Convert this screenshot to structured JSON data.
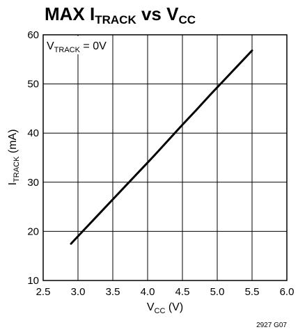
{
  "chart_data": {
    "type": "line",
    "title": {
      "main": "MAX I",
      "sub": "TRACK",
      "mid": " vs V",
      "sub2": "CC"
    },
    "xlabel": {
      "main": "V",
      "sub": "CC",
      "unit": " (V)"
    },
    "ylabel": {
      "main": "I",
      "sub": "TRACK",
      "unit": " (mA)"
    },
    "annotation": {
      "main": "V",
      "sub": "TRACK",
      "rest": " = 0V"
    },
    "figure_id": "2927 G07",
    "xlim": [
      2.5,
      6.0
    ],
    "ylim": [
      10,
      60
    ],
    "x_ticks": [
      2.5,
      3.0,
      3.5,
      4.0,
      4.5,
      5.0,
      5.5,
      6.0
    ],
    "x_tick_labels": [
      "2.5",
      "3.0",
      "3.5",
      "4.0",
      "4.5",
      "5.0",
      "5.5",
      "6.0"
    ],
    "y_ticks": [
      10,
      20,
      30,
      40,
      50,
      60
    ],
    "y_tick_labels": [
      "10",
      "20",
      "30",
      "40",
      "50",
      "60"
    ],
    "grid": true,
    "series": [
      {
        "x": [
          2.9,
          3.1,
          3.3,
          3.5,
          3.7,
          3.9,
          4.1,
          4.3,
          4.5,
          4.7,
          4.9,
          5.1,
          5.3,
          5.5
        ],
        "y": [
          17.5,
          20.5,
          23.5,
          26.5,
          29.5,
          32.5,
          35.5,
          38.6,
          41.7,
          44.7,
          47.8,
          50.8,
          53.8,
          56.8
        ]
      }
    ]
  }
}
